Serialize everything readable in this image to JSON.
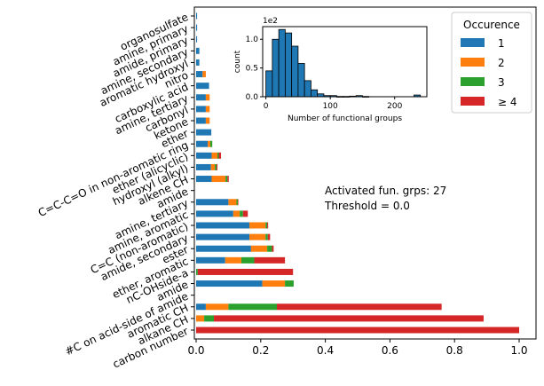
{
  "chart_data": [
    {
      "type": "bar",
      "orientation": "horizontal",
      "stacked": true,
      "categories": [
        "carbon number",
        "alkane CH",
        "aromatic CH",
        "#C on acid-side of amide",
        "amide",
        "nC-OHside-a",
        "ether, aromatic",
        "ester",
        "amide, secondary",
        "C=C (non-aromatic)",
        "amine, aromatic",
        "amine, tertiary",
        "amide",
        "alkene CH",
        "hydroxyl (alkyl)",
        "ether (alicyclic)",
        "C=C-C=O in non-aromatic ring",
        "ether",
        "ketone",
        "carbonyl",
        "amine, tertiary",
        "carboxylic acid",
        "nitro",
        "aromatic hydroxyl",
        "amine, secondary",
        "amide, primary",
        "amine, primary",
        "organosulfate"
      ],
      "series": [
        {
          "name": "1",
          "values": [
            0,
            0,
            0.03,
            0,
            0.205,
            0,
            0.09,
            0.17,
            0.165,
            0.165,
            0.115,
            0.1,
            0,
            0.048,
            0.046,
            0.048,
            0.036,
            0.047,
            0.03,
            0.03,
            0.03,
            0.04,
            0.02,
            0.01,
            0.01,
            0.003,
            0.003,
            0.003
          ]
        },
        {
          "name": "2",
          "values": [
            0,
            0.025,
            0.07,
            0,
            0.07,
            0,
            0.05,
            0.05,
            0.05,
            0.05,
            0.02,
            0.025,
            0,
            0.043,
            0.012,
            0.018,
            0.008,
            0.0,
            0.012,
            0.012,
            0.012,
            0.0,
            0.01,
            0.0,
            0.0,
            0.0,
            0.0,
            0.0
          ]
        },
        {
          "name": "3",
          "values": [
            0,
            0.03,
            0.15,
            0,
            0.027,
            0.005,
            0.04,
            0.015,
            0.007,
            0.005,
            0.01,
            0.004,
            0,
            0.006,
            0.005,
            0.004,
            0.006,
            0.0,
            0.0,
            0.0,
            0.0,
            0.0,
            0.0,
            0.0,
            0.0,
            0.0,
            0.0,
            0.0
          ]
        },
        {
          "name": "≥ 4",
          "values": [
            1.0,
            0.835,
            0.51,
            0,
            0,
            0.295,
            0.095,
            0.005,
            0.007,
            0.003,
            0.015,
            0.001,
            0,
            0.004,
            0.003,
            0.007,
            0.0,
            0.0,
            0.0,
            0.0,
            0.0,
            0.0,
            0.0,
            0.0,
            0.0,
            0.0,
            0.0,
            0.0
          ]
        }
      ],
      "xlim": [
        0,
        1.05
      ],
      "xticks": [
        "0.0",
        "0.2",
        "0.4",
        "0.6",
        "0.8",
        "1.0"
      ],
      "legend": {
        "title": "Occurence",
        "placement": "top-right"
      },
      "annotation": [
        "Activated fun. grps: 27",
        "Threshold = 0.0"
      ],
      "colors": {
        "1": "#1f77b4",
        "2": "#ff7f0e",
        "3": "#2ca02c",
        "≥ 4": "#d62728"
      }
    },
    {
      "type": "histogram",
      "bins": [
        5,
        15,
        25,
        35,
        45,
        55,
        65,
        75,
        85,
        95,
        105,
        115,
        125,
        135,
        145,
        155,
        165,
        175,
        185,
        195,
        205,
        215,
        225,
        235
      ],
      "bin_width": 10,
      "values": [
        0.45,
        1.0,
        1.17,
        1.11,
        0.88,
        0.58,
        0.28,
        0.12,
        0.05,
        0.02,
        0.02,
        0.005,
        0.005,
        0.01,
        0.02,
        0.005,
        0.0,
        0.0,
        0.0,
        0.0,
        0.0,
        0.0,
        0.0,
        0.03
      ],
      "xlabel": "Number of functional groups",
      "ylabel": "count",
      "scale_label": "1e2",
      "xlim": [
        -5,
        250
      ],
      "ylim": [
        0,
        1.22
      ],
      "xticks": [
        0,
        100,
        200
      ],
      "yticks": [
        "0.0",
        "0.5",
        "1.0"
      ],
      "color": "#1f77b4"
    }
  ]
}
